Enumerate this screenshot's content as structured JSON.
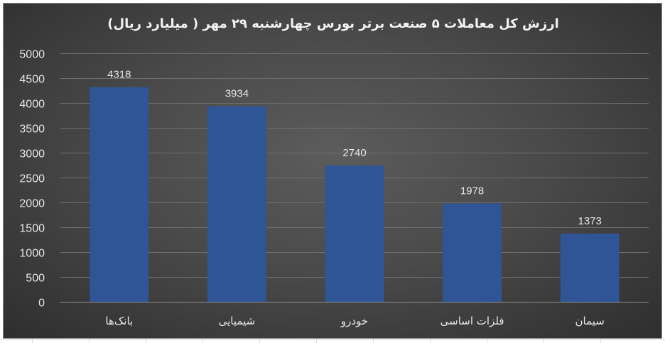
{
  "chart_data": {
    "type": "bar",
    "title": "ارزش کل معاملات ۵ صنعت برتر بورس چهارشنبه ۲۹ مهر ( میلیارد ریال)",
    "categories": [
      "بانک‌ها",
      "شیمیایی",
      "خودرو",
      "فلزات اساسی",
      "سیمان"
    ],
    "values": [
      4318,
      3934,
      2740,
      1978,
      1373
    ],
    "data_labels": [
      "4318",
      "3934",
      "2740",
      "1978",
      "1373"
    ],
    "y_ticks": [
      "0",
      "500",
      "1000",
      "1500",
      "2000",
      "2500",
      "3000",
      "3500",
      "4000",
      "4500",
      "5000"
    ],
    "ylim": [
      0,
      5000
    ],
    "grid": true,
    "legend": "none",
    "colors": {
      "bar": "#2f5597",
      "background": "#404040",
      "gridline": "#6e6e6e",
      "text": "#e6e6e6"
    }
  }
}
